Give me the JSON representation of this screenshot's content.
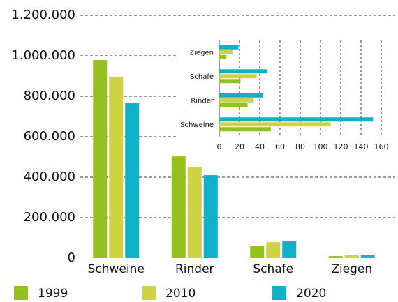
{
  "chart_data": [
    {
      "type": "bar",
      "categories": [
        "Schweine",
        "Rinder",
        "Schafe",
        "Ziegen"
      ],
      "series": [
        {
          "name": "1999",
          "color": "#95c11f",
          "values": [
            979000,
            503000,
            59000,
            10000
          ]
        },
        {
          "name": "2010",
          "color": "#cdd343",
          "values": [
            897000,
            452000,
            79000,
            15000
          ]
        },
        {
          "name": "2020",
          "color": "#0eb1c8",
          "values": [
            766000,
            410000,
            86000,
            16000
          ]
        }
      ],
      "ylim": [
        0,
        1200000
      ],
      "yticks": [
        0,
        {
          "value": 200000,
          "label": "200.000"
        },
        {
          "value": 400000,
          "label": "400.000"
        },
        {
          "value": 600000,
          "label": "600.000"
        },
        {
          "value": 800000,
          "label": "800.000"
        },
        {
          "value": 1000000,
          "label": "1.000.000"
        },
        {
          "value": 1200000,
          "label": "1.200.000"
        }
      ],
      "grid": true
    },
    {
      "type": "hbar",
      "categories": [
        "Schweine",
        "Rinder",
        "Schafe",
        "Ziegen"
      ],
      "series": [
        {
          "color": "#95c11f",
          "values": [
            51,
            28,
            21,
            7
          ]
        },
        {
          "color": "#cdd343",
          "values": [
            110,
            34,
            37,
            13
          ]
        },
        {
          "color": "#0eb1c8",
          "values": [
            152,
            43,
            47,
            19
          ]
        }
      ],
      "xlim": [
        0,
        160
      ],
      "xticks": [
        0,
        20,
        40,
        60,
        80,
        100,
        120,
        140,
        160
      ],
      "grid": true
    }
  ]
}
